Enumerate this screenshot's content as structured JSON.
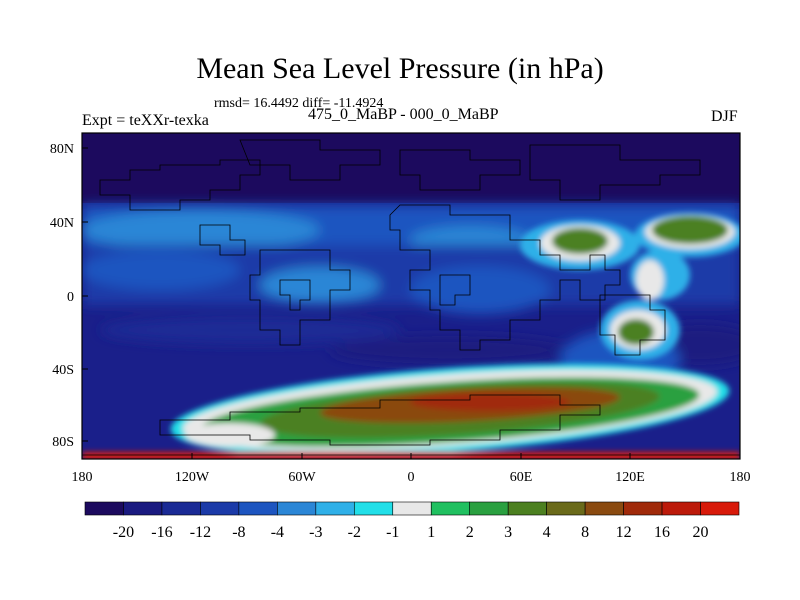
{
  "title": "Mean Sea Level Pressure (in hPa)",
  "stats": "rmsd= 16.4492 diff= -11.4924",
  "left_label": "Expt = teXXr-texka",
  "center_label": "475_0_MaBP - 000_0_MaBP",
  "right_label": "DJF",
  "lat_labels": [
    "80N",
    "40N",
    "0",
    "40S",
    "80S"
  ],
  "lon_labels": [
    "180",
    "120W",
    "60W",
    "0",
    "60E",
    "120E",
    "180"
  ],
  "colorbar": {
    "labels": [
      "-20",
      "-16",
      "-12",
      "-8",
      "-4",
      "-3",
      "-2",
      "-1",
      "1",
      "2",
      "3",
      "4",
      "8",
      "12",
      "16",
      "20"
    ],
    "colors": [
      "#1c0a5e",
      "#1a1a80",
      "#1a2a95",
      "#1b3aa8",
      "#1d55c0",
      "#2b86d6",
      "#2fb0e8",
      "#22dfe8",
      "#e8e8e8",
      "#20c060",
      "#2aa040",
      "#4c8020",
      "#6a6a1a",
      "#8a4a10",
      "#a02a0a",
      "#bc1a0a",
      "#d81a0a"
    ]
  }
}
